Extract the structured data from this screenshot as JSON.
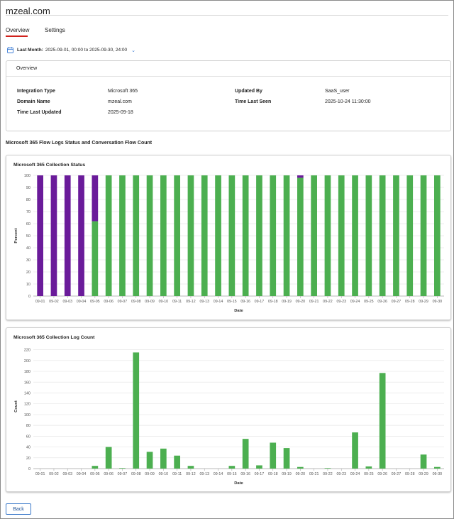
{
  "page": {
    "title": "mzeal.com"
  },
  "tabs": [
    {
      "label": "Overview"
    },
    {
      "label": "Settings"
    }
  ],
  "date_filter": {
    "label": "Last Month:",
    "range": "2025-09-01, 00:00 to 2025-09-30, 24:00",
    "icon": "calendar-icon"
  },
  "overview": {
    "heading": "Overview",
    "fields": [
      {
        "key": "Integration Type",
        "value": "Microsoft 365"
      },
      {
        "key": "Domain Name",
        "value": "mzeal.com"
      },
      {
        "key": "Time Last Updated",
        "value": "2025-09-18"
      },
      {
        "key": "Updated By",
        "value": "SaaS_user"
      },
      {
        "key": "Time Last Seen",
        "value": "2025-10-24 11:30:00"
      }
    ]
  },
  "section_title": "Microsoft 365 Flow Logs Status and Conversation Flow Count",
  "colors": {
    "green": "#4caf50",
    "purple": "#6a1b9a",
    "accent": "#d0211c",
    "button": "#3a78c9"
  },
  "chart_data": [
    {
      "type": "bar",
      "title": "Microsoft 365 Collection Status",
      "xlabel": "Date",
      "ylabel": "Percent",
      "ylim": [
        0,
        100
      ],
      "yticks": [
        0,
        10,
        20,
        30,
        40,
        50,
        60,
        70,
        80,
        90,
        100
      ],
      "categories": [
        "09-01",
        "09-02",
        "09-03",
        "09-04",
        "09-05",
        "09-06",
        "09-07",
        "09-08",
        "09-09",
        "09-10",
        "09-11",
        "09-12",
        "09-13",
        "09-14",
        "09-15",
        "09-16",
        "09-17",
        "09-18",
        "09-19",
        "09-20",
        "09-21",
        "09-22",
        "09-23",
        "09-24",
        "09-25",
        "09-26",
        "09-27",
        "09-28",
        "09-29",
        "09-30"
      ],
      "stacked": true,
      "series": [
        {
          "color": "#4caf50",
          "values": [
            0,
            0,
            0,
            0,
            62,
            100,
            100,
            100,
            100,
            100,
            100,
            100,
            100,
            100,
            100,
            100,
            100,
            100,
            100,
            98,
            100,
            100,
            100,
            100,
            100,
            100,
            100,
            100,
            100,
            100
          ]
        },
        {
          "color": "#6a1b9a",
          "values": [
            100,
            100,
            100,
            100,
            38,
            0,
            0,
            0,
            0,
            0,
            0,
            0,
            0,
            0,
            0,
            0,
            0,
            0,
            0,
            2,
            0,
            0,
            0,
            0,
            0,
            0,
            0,
            0,
            0,
            0
          ]
        }
      ],
      "grid": true
    },
    {
      "type": "bar",
      "title": "Microsoft 365 Collection Log Count",
      "xlabel": "Date",
      "ylabel": "Count",
      "ylim": [
        0,
        230
      ],
      "yticks": [
        0,
        20,
        40,
        60,
        80,
        100,
        120,
        140,
        160,
        180,
        200,
        220
      ],
      "categories": [
        "09-01",
        "09-02",
        "09-03",
        "09-04",
        "09-05",
        "09-06",
        "09-07",
        "09-08",
        "09-09",
        "09-10",
        "09-11",
        "09-12",
        "09-13",
        "09-14",
        "09-15",
        "09-16",
        "09-17",
        "09-18",
        "09-19",
        "09-20",
        "09-21",
        "09-22",
        "09-23",
        "09-24",
        "09-25",
        "09-26",
        "09-27",
        "09-28",
        "09-29",
        "09-30"
      ],
      "series": [
        {
          "color": "#4caf50",
          "values": [
            0,
            0,
            0,
            0,
            5,
            40,
            1,
            215,
            31,
            37,
            24,
            5,
            0,
            0,
            5,
            55,
            6,
            48,
            38,
            3,
            0,
            1,
            0,
            67,
            4,
            177,
            0,
            0,
            26,
            3
          ]
        }
      ],
      "grid": true
    }
  ],
  "buttons": {
    "back": "Back"
  }
}
